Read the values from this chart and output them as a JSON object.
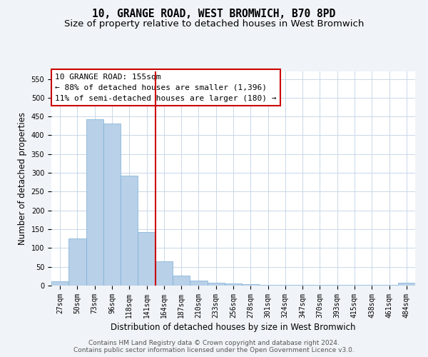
{
  "title": "10, GRANGE ROAD, WEST BROMWICH, B70 8PD",
  "subtitle": "Size of property relative to detached houses in West Bromwich",
  "xlabel": "Distribution of detached houses by size in West Bromwich",
  "ylabel": "Number of detached properties",
  "bar_color": "#b8d0e8",
  "bar_edge_color": "#7aaed6",
  "categories": [
    "27sqm",
    "50sqm",
    "73sqm",
    "96sqm",
    "118sqm",
    "141sqm",
    "164sqm",
    "187sqm",
    "210sqm",
    "233sqm",
    "256sqm",
    "278sqm",
    "301sqm",
    "324sqm",
    "347sqm",
    "370sqm",
    "393sqm",
    "415sqm",
    "438sqm",
    "461sqm",
    "484sqm"
  ],
  "values": [
    12,
    125,
    443,
    432,
    292,
    142,
    65,
    27,
    13,
    8,
    5,
    3,
    2,
    2,
    2,
    2,
    1,
    1,
    2,
    1,
    7
  ],
  "vline_x": 5.5,
  "vline_color": "#cc0000",
  "annotation_line1": "10 GRANGE ROAD: 155sqm",
  "annotation_line2": "← 88% of detached houses are smaller (1,396)",
  "annotation_line3": "11% of semi-detached houses are larger (180) →",
  "annotation_box_color": "white",
  "annotation_box_edge_color": "#cc0000",
  "ylim": [
    0,
    570
  ],
  "yticks": [
    0,
    50,
    100,
    150,
    200,
    250,
    300,
    350,
    400,
    450,
    500,
    550
  ],
  "footer_text": "Contains HM Land Registry data © Crown copyright and database right 2024.\nContains public sector information licensed under the Open Government Licence v3.0.",
  "background_color": "#f0f4f8",
  "plot_background_color": "white",
  "grid_color": "#c8d8e8",
  "title_fontsize": 10.5,
  "subtitle_fontsize": 9.5,
  "annotation_fontsize": 8,
  "tick_fontsize": 7,
  "ylabel_fontsize": 8.5,
  "xlabel_fontsize": 8.5,
  "footer_fontsize": 6.5
}
